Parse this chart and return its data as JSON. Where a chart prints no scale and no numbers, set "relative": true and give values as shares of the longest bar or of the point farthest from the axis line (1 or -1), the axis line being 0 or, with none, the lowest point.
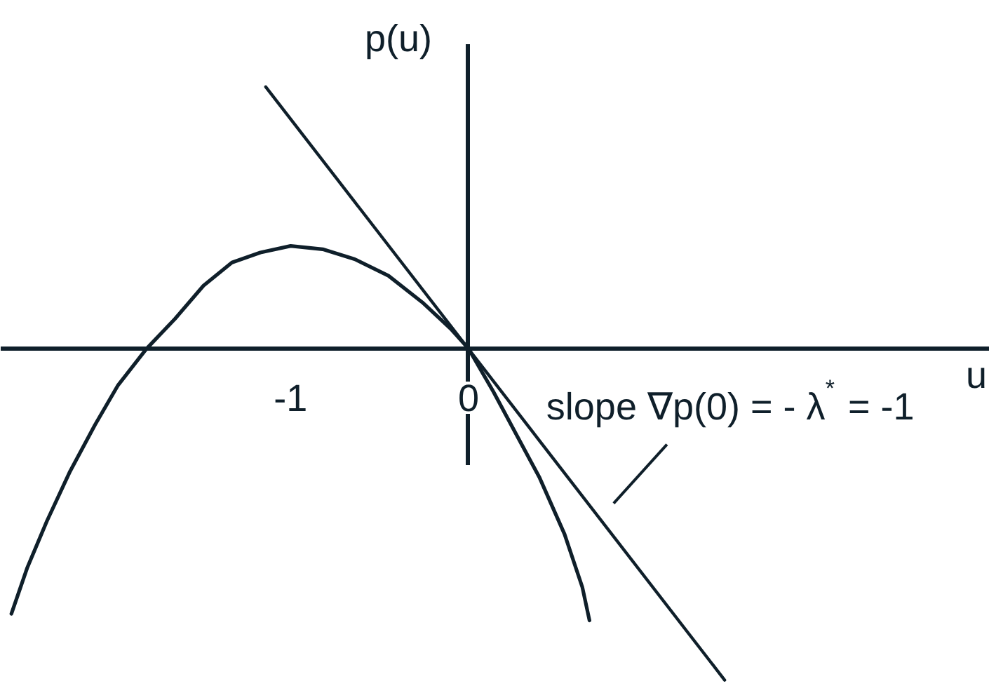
{
  "chart_data": {
    "type": "line",
    "xlabel": "u",
    "ylabel": "p(u)",
    "relative": true,
    "xlim": [
      -2.63,
      2.93
    ],
    "xticks": [
      -1,
      0
    ],
    "series": [
      {
        "color": "#0f1f2a",
        "x": [
          -2.57,
          -2.48,
          -2.37,
          -2.24,
          -2.1,
          -1.97,
          -1.81,
          -1.65,
          -1.49,
          -1.33,
          -1.17,
          -1.0,
          -0.82,
          -0.64,
          -0.45,
          -0.26,
          -0.1,
          0,
          0.14,
          0.27,
          0.4,
          0.54,
          0.64,
          0.68
        ],
        "values": [
          -0.8,
          -0.66,
          -0.52,
          -0.37,
          -0.23,
          -0.11,
          0.0,
          0.09,
          0.19,
          0.26,
          0.29,
          0.31,
          0.3,
          0.27,
          0.22,
          0.14,
          0.06,
          0,
          -0.13,
          -0.26,
          -0.39,
          -0.56,
          -0.72,
          -0.82
        ]
      },
      {
        "color": "#0f1f2a",
        "x": [
          -1.14,
          1.44
        ],
        "values": [
          0.79,
          -1
        ]
      }
    ],
    "annotations": [
      {
        "text": "slope ∇p(0) = - λ$^{*}$ = -1",
        "x": 0.8,
        "y": -0.56
      }
    ]
  }
}
